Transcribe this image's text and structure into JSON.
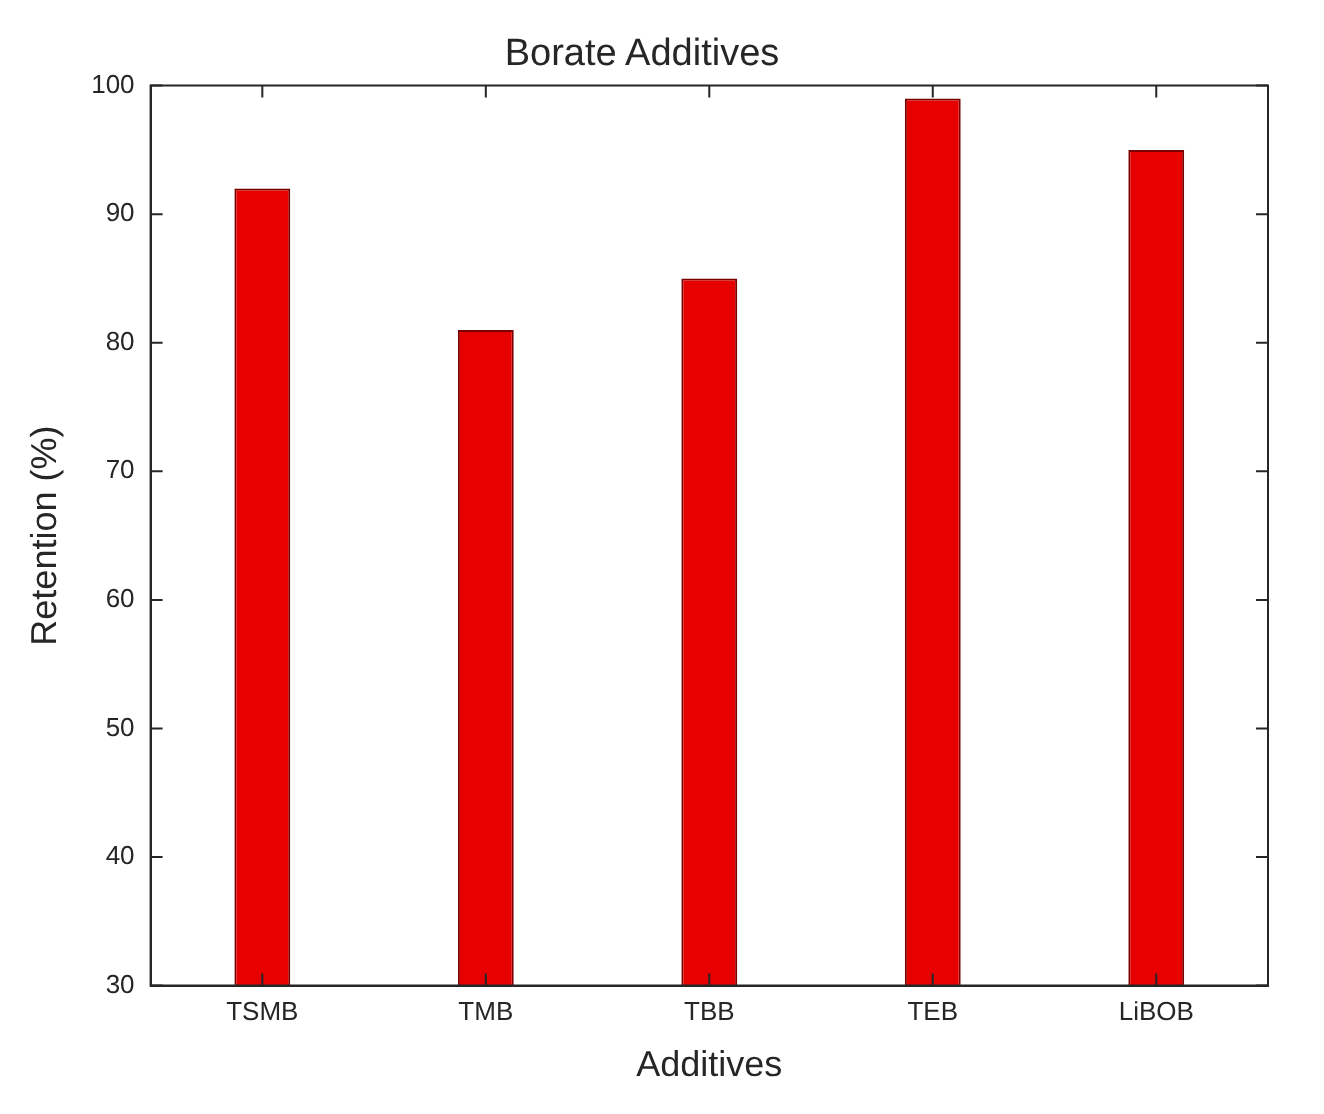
{
  "chart_data": {
    "type": "bar",
    "title": "Borate Additives",
    "xlabel": "Additives",
    "ylabel": "Retention (%)",
    "categories": [
      "TSMB",
      "TMB",
      "TBB",
      "TEB",
      "LiBOB"
    ],
    "values": [
      92,
      81,
      85,
      99,
      95
    ],
    "color": "#e60000",
    "ylim": [
      30,
      100
    ],
    "yticks": [
      30,
      40,
      50,
      60,
      70,
      80,
      90,
      100
    ],
    "grid": false
  }
}
